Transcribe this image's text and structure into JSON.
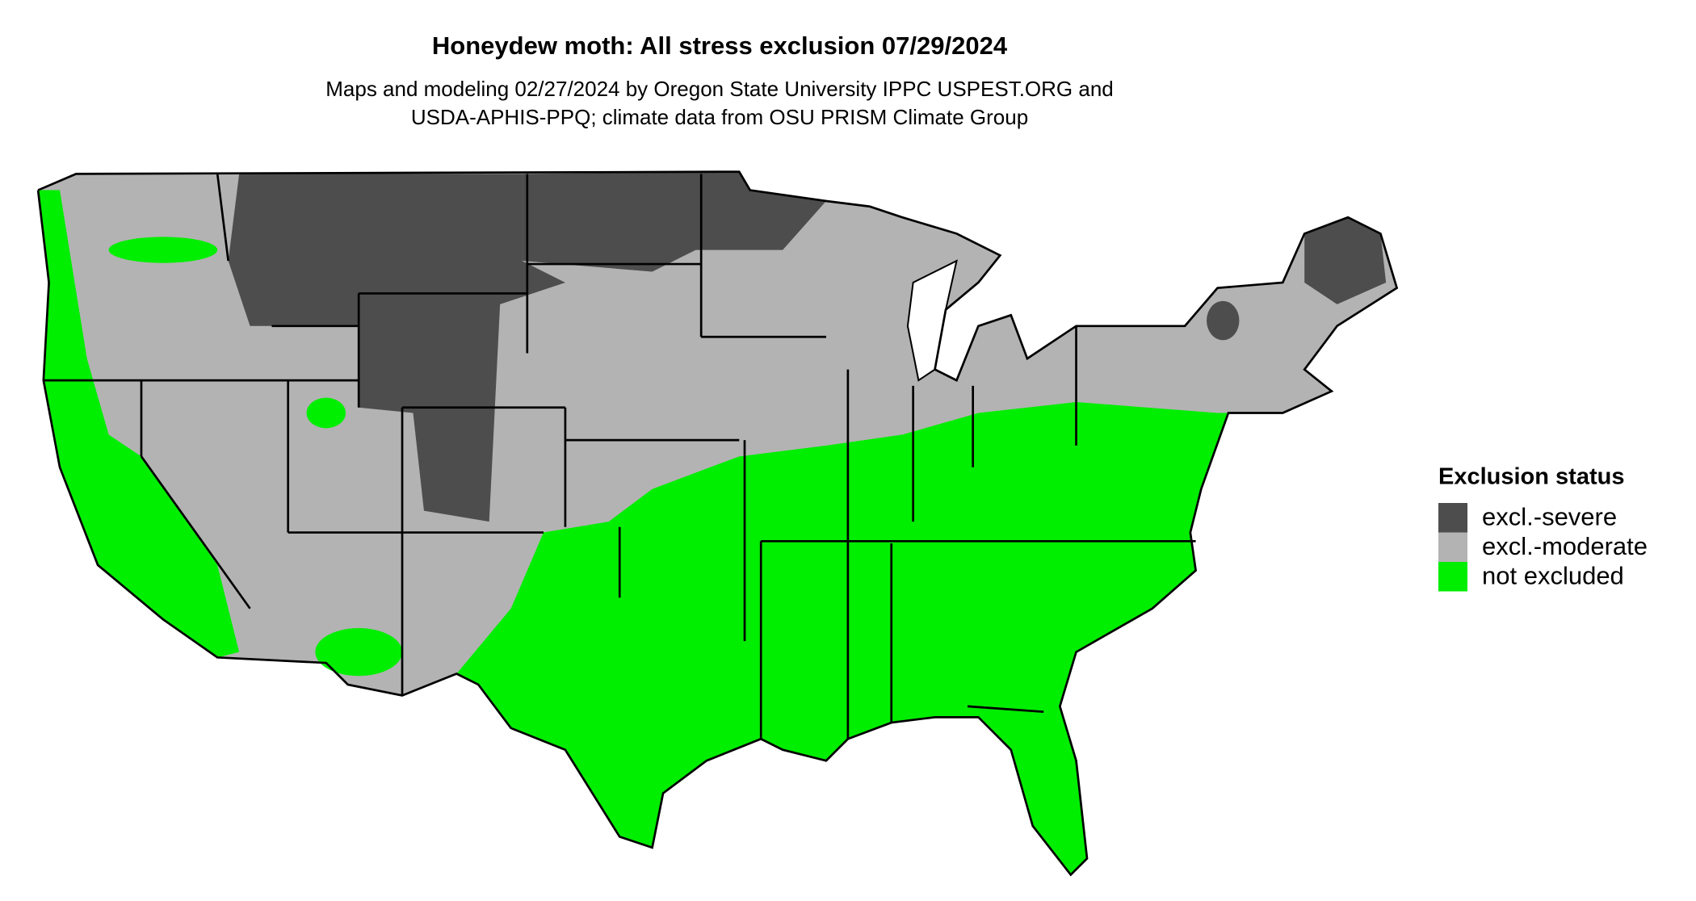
{
  "title": "Honeydew moth: All stress exclusion 07/29/2024",
  "subtitle": [
    "Maps and modeling 02/27/2024 by Oregon State University IPPC USPEST.ORG and",
    "USDA-APHIS-PPQ; climate data from OSU PRISM Climate Group"
  ],
  "legend": {
    "title": "Exclusion status",
    "items": [
      {
        "label": "excl.-severe",
        "color": "#4d4d4d"
      },
      {
        "label": "excl.-moderate",
        "color": "#b3b3b3"
      },
      {
        "label": "not excluded",
        "color": "#00ee00"
      }
    ]
  }
}
